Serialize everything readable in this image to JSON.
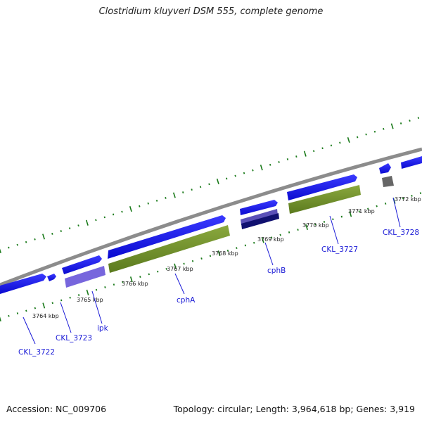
{
  "title": "Clostridium kluyveri DSM 555, complete genome",
  "footer": {
    "accession": "Accession: NC_009706",
    "topology": "Topology: circular; Length: 3,964,618 bp; Genes: 3,919"
  },
  "scale_labels": [
    "3764 kbp",
    "3765 kbp",
    "3766 kbp",
    "3767 kbp",
    "3768 kbp",
    "3769 kbp",
    "3770 kbp",
    "3771 kbp",
    "3772 kbp"
  ],
  "gene_labels": [
    "CKL_3722",
    "CKL_3723",
    "ipk",
    "cphA",
    "cphB",
    "CKL_3727",
    "CKL_3728"
  ],
  "colors": {
    "backbone": "#8c8c8c",
    "gene": "#1010ee",
    "gene_ipk": "#7766dd",
    "cds_track": "#6f8f2a",
    "cds_cphB": "#101070",
    "cds_small": "#666666",
    "tick": "#1a7a1a",
    "label": "#1a1ad6"
  }
}
